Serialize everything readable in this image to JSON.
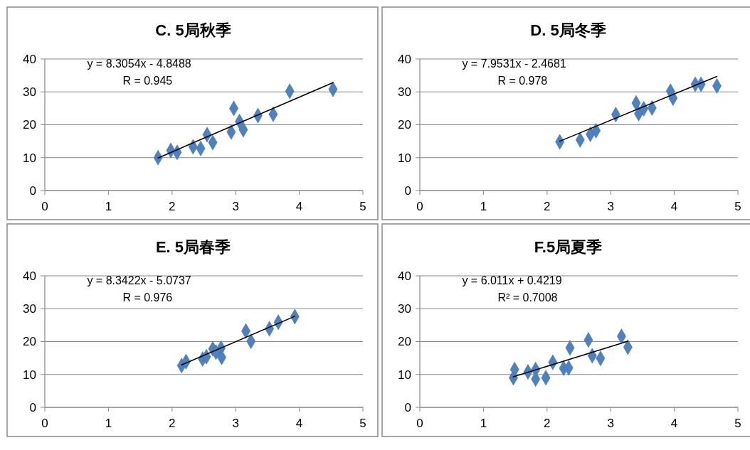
{
  "chart_data": [
    {
      "type": "scatter",
      "title": "C. 5局秋季",
      "marker": "diamond",
      "grid": "y",
      "xlim": [
        0,
        5
      ],
      "xticks": [
        0,
        1,
        2,
        3,
        4,
        5
      ],
      "ylim": [
        0,
        40
      ],
      "yticks": [
        0,
        10,
        20,
        30,
        40
      ],
      "annotations": [
        "y = 8.3054x - 4.8488",
        "R = 0.945"
      ],
      "series": [
        {
          "color": "#4f81bd",
          "x": [
            1.78,
            1.98,
            2.08,
            2.33,
            2.45,
            2.55,
            2.64,
            2.93,
            2.97,
            3.06,
            3.12,
            3.35,
            3.59,
            3.85,
            4.53
          ],
          "values": [
            10.0,
            12.2,
            11.6,
            13.3,
            12.8,
            17.0,
            14.6,
            17.8,
            25.0,
            21.0,
            18.5,
            22.8,
            23.2,
            30.2,
            30.8
          ]
        },
        {
          "type": "line",
          "color": "#000000",
          "marker": "none",
          "x": [
            1.78,
            4.53
          ],
          "values": [
            9.9,
            32.8
          ]
        }
      ]
    },
    {
      "type": "scatter",
      "title": "D. 5局冬季",
      "marker": "diamond",
      "grid": "y",
      "xlim": [
        0,
        5
      ],
      "xticks": [
        0,
        1,
        2,
        3,
        4,
        5
      ],
      "ylim": [
        0,
        40
      ],
      "yticks": [
        0,
        10,
        20,
        30,
        40
      ],
      "annotations": [
        "y = 7.9531x - 2.4681",
        "R = 0.978"
      ],
      "series": [
        {
          "color": "#4f81bd",
          "x": [
            2.2,
            2.52,
            2.68,
            2.77,
            3.08,
            3.4,
            3.44,
            3.52,
            3.65,
            3.94,
            3.98,
            4.33,
            4.42,
            4.67
          ],
          "values": [
            14.8,
            15.4,
            17.1,
            18.2,
            23.1,
            26.6,
            23.4,
            24.9,
            25.1,
            30.2,
            28.1,
            32.3,
            32.3,
            31.8
          ]
        },
        {
          "type": "line",
          "color": "#000000",
          "marker": "none",
          "x": [
            2.2,
            4.67
          ],
          "values": [
            15.0,
            34.7
          ]
        }
      ]
    },
    {
      "type": "scatter",
      "title": "E. 5局春季",
      "marker": "diamond",
      "grid": "y",
      "xlim": [
        0,
        5
      ],
      "xticks": [
        0,
        1,
        2,
        3,
        4,
        5
      ],
      "ylim": [
        0,
        40
      ],
      "yticks": [
        0,
        10,
        20,
        30,
        40
      ],
      "annotations": [
        "y = 8.3422x - 5.0737",
        "R = 0.976"
      ],
      "series": [
        {
          "color": "#4f81bd",
          "x": [
            2.15,
            2.22,
            2.48,
            2.54,
            2.64,
            2.69,
            2.77,
            2.78,
            3.16,
            3.24,
            3.53,
            3.67,
            3.93
          ],
          "values": [
            12.7,
            13.9,
            14.7,
            15.4,
            17.8,
            16.8,
            18.0,
            15.2,
            23.2,
            20.1,
            23.9,
            25.9,
            27.6
          ]
        },
        {
          "type": "line",
          "color": "#000000",
          "marker": "none",
          "x": [
            2.15,
            3.93
          ],
          "values": [
            12.9,
            27.7
          ]
        }
      ]
    },
    {
      "type": "scatter",
      "title": "F.5局夏季",
      "marker": "diamond",
      "grid": "y",
      "xlim": [
        0,
        5
      ],
      "xticks": [
        0,
        1,
        2,
        3,
        4,
        5
      ],
      "ylim": [
        0,
        40
      ],
      "yticks": [
        0,
        10,
        20,
        30,
        40
      ],
      "annotations": [
        "y = 6.011x + 0.4219",
        "R² = 0.7008"
      ],
      "series": [
        {
          "color": "#4f81bd",
          "x": [
            1.47,
            1.49,
            1.7,
            1.82,
            1.82,
            1.98,
            2.09,
            2.26,
            2.34,
            2.36,
            2.65,
            2.71,
            2.84,
            3.17,
            3.27
          ],
          "values": [
            9.0,
            11.5,
            10.8,
            11.5,
            8.6,
            9.0,
            13.7,
            11.9,
            12.0,
            18.1,
            20.5,
            15.7,
            14.9,
            21.6,
            18.3
          ]
        },
        {
          "type": "line",
          "color": "#000000",
          "marker": "none",
          "x": [
            1.47,
            3.27
          ],
          "values": [
            9.3,
            20.1
          ]
        }
      ]
    }
  ]
}
